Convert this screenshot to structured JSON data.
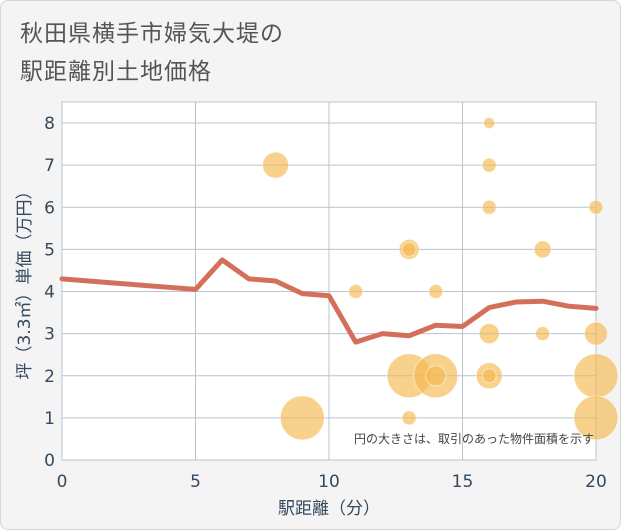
{
  "chart_data": {
    "type": "scatter",
    "title": [
      "秋田県横手市婦気大堤の",
      "駅距離別土地価格"
    ],
    "xlabel": "駅距離（分）",
    "ylabel": "坪（3.3㎡）単価（万円）",
    "xlim": [
      0,
      20
    ],
    "ylim": [
      0,
      8.5
    ],
    "xticks": [
      0,
      5,
      10,
      15,
      20
    ],
    "yticks": [
      0,
      1,
      2,
      3,
      4,
      5,
      6,
      7,
      8
    ],
    "grid": true,
    "note": "円の大きさは、取引のあった物件面積を示す",
    "colors": {
      "line": "#d4705a",
      "bubble": "#f5b94f",
      "background": "#ffffff",
      "grid": "#b8c4d0",
      "axis_text": "#34495e"
    },
    "line": {
      "x": [
        0,
        1,
        2,
        3,
        4,
        5,
        6,
        7,
        8,
        9,
        10,
        11,
        12,
        13,
        14,
        15,
        16,
        17,
        18,
        19,
        20
      ],
      "y": [
        4.3,
        4.25,
        4.2,
        4.15,
        4.1,
        4.05,
        4.75,
        4.3,
        4.25,
        3.95,
        3.9,
        2.8,
        3.0,
        2.95,
        3.2,
        3.17,
        3.62,
        3.75,
        3.77,
        3.65,
        3.6
      ]
    },
    "bubbles": [
      {
        "x": 8,
        "y": 7,
        "size": 3
      },
      {
        "x": 9,
        "y": 1,
        "size": 6
      },
      {
        "x": 11,
        "y": 4,
        "size": 1
      },
      {
        "x": 13,
        "y": 5,
        "size": 2
      },
      {
        "x": 13,
        "y": 5,
        "size": 1
      },
      {
        "x": 13,
        "y": 2,
        "size": 6
      },
      {
        "x": 13,
        "y": 1,
        "size": 1
      },
      {
        "x": 14,
        "y": 4,
        "size": 1
      },
      {
        "x": 14,
        "y": 2,
        "size": 6
      },
      {
        "x": 14,
        "y": 2,
        "size": 2
      },
      {
        "x": 16,
        "y": 8,
        "size": 0.5
      },
      {
        "x": 16,
        "y": 7,
        "size": 1
      },
      {
        "x": 16,
        "y": 6,
        "size": 1
      },
      {
        "x": 16,
        "y": 3,
        "size": 2
      },
      {
        "x": 16,
        "y": 2,
        "size": 3
      },
      {
        "x": 16,
        "y": 2,
        "size": 1
      },
      {
        "x": 18,
        "y": 5,
        "size": 1.5
      },
      {
        "x": 18,
        "y": 3,
        "size": 1
      },
      {
        "x": 20,
        "y": 6,
        "size": 1
      },
      {
        "x": 20,
        "y": 3,
        "size": 2.5
      },
      {
        "x": 20,
        "y": 2,
        "size": 6
      },
      {
        "x": 20,
        "y": 1,
        "size": 6
      }
    ]
  }
}
